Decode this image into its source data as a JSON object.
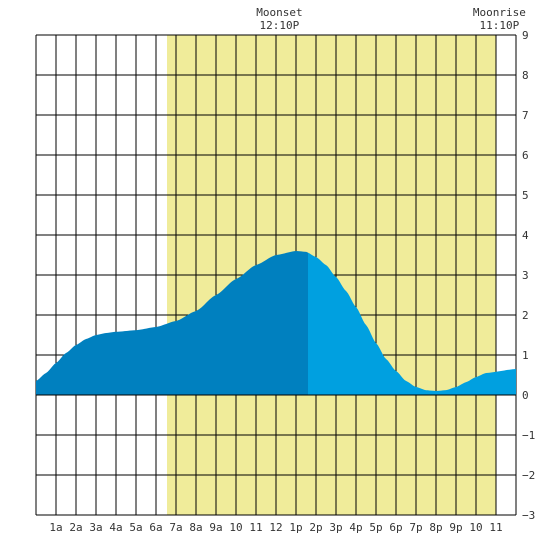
{
  "chart_data": {
    "type": "area",
    "title": "",
    "xlabel": "",
    "ylabel": "",
    "x_unit": "hour of day",
    "xlim": [
      0,
      24
    ],
    "ylim": [
      -3,
      9
    ],
    "y_ticks": [
      9,
      8,
      7,
      6,
      5,
      4,
      3,
      2,
      1,
      0,
      -1,
      -2,
      -3
    ],
    "y_tick_labels": [
      "9",
      "8",
      "7",
      "6",
      "5",
      "4",
      "3",
      "2",
      "1",
      "0",
      "−1",
      "−2",
      "−3"
    ],
    "x_ticks": [
      1,
      2,
      3,
      4,
      5,
      6,
      7,
      8,
      9,
      10,
      11,
      12,
      13,
      14,
      15,
      16,
      17,
      18,
      19,
      20,
      21,
      22,
      23
    ],
    "x_tick_labels": [
      "1a",
      "2a",
      "3a",
      "4a",
      "5a",
      "6a",
      "7a",
      "8a",
      "9a",
      "10",
      "11",
      "12",
      "1p",
      "2p",
      "3p",
      "4p",
      "5p",
      "6p",
      "7p",
      "8p",
      "9p",
      "10",
      "11"
    ],
    "daylight": {
      "start": 6.55,
      "end": 23.0,
      "color": "#f0ec9a"
    },
    "moon_events": [
      {
        "name": "Moonset",
        "time": "12:10P",
        "hour": 12.17
      },
      {
        "name": "Moonrise",
        "time": "11:10P",
        "hour": 23.17
      }
    ],
    "series": [
      {
        "values": [
          [
            0,
            0.35
          ],
          [
            0.5,
            0.55
          ],
          [
            1,
            0.8
          ],
          [
            1.5,
            1.05
          ],
          [
            2,
            1.25
          ],
          [
            2.5,
            1.4
          ],
          [
            3,
            1.5
          ],
          [
            3.5,
            1.55
          ],
          [
            4,
            1.58
          ],
          [
            5,
            1.62
          ],
          [
            6,
            1.7
          ],
          [
            7,
            1.85
          ],
          [
            8,
            2.1
          ],
          [
            9,
            2.5
          ],
          [
            10,
            2.9
          ],
          [
            11,
            3.25
          ],
          [
            12,
            3.5
          ],
          [
            13,
            3.6
          ],
          [
            13.5,
            3.58
          ],
          [
            14,
            3.45
          ],
          [
            14.5,
            3.25
          ],
          [
            15,
            2.95
          ],
          [
            15.5,
            2.6
          ],
          [
            16,
            2.2
          ],
          [
            16.5,
            1.75
          ],
          [
            17,
            1.3
          ],
          [
            17.5,
            0.9
          ],
          [
            18,
            0.6
          ],
          [
            18.5,
            0.35
          ],
          [
            19,
            0.2
          ],
          [
            19.5,
            0.12
          ],
          [
            20,
            0.1
          ],
          [
            20.5,
            0.12
          ],
          [
            21,
            0.2
          ],
          [
            21.5,
            0.32
          ],
          [
            22,
            0.45
          ],
          [
            22.5,
            0.55
          ],
          [
            24,
            0.65
          ]
        ]
      }
    ],
    "split_hour": 13.6,
    "colors": {
      "background": "#ffffff",
      "grid": "#000000",
      "area_before_split": "#0080bf",
      "area_after_split": "#00a0e0"
    },
    "grid": true
  }
}
